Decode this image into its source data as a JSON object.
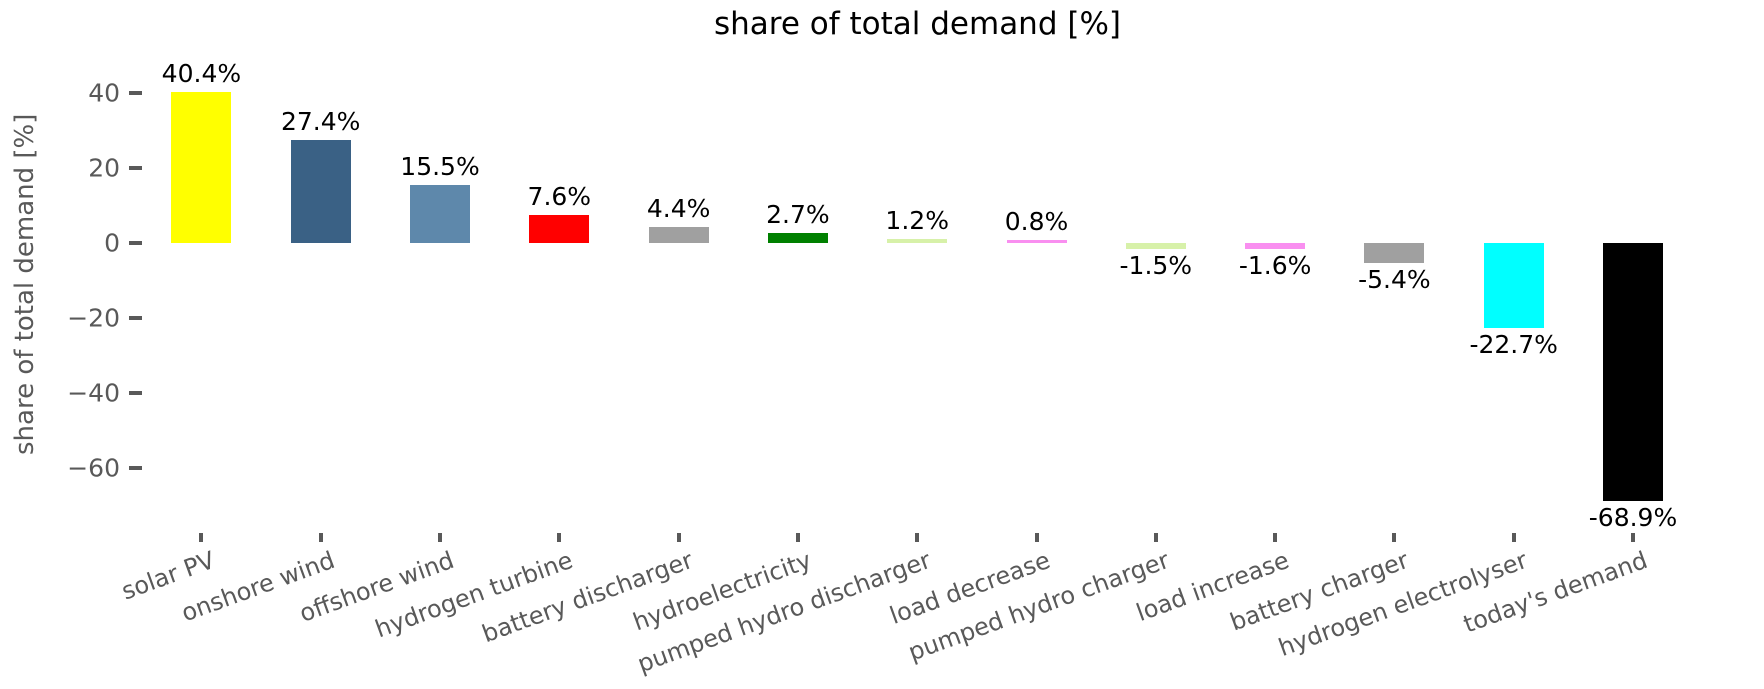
{
  "chart_data": {
    "type": "bar",
    "title": "share of total demand [%]",
    "xlabel": "",
    "ylabel": "share of total demand [%]",
    "ylim": [
      -76.5,
      51.5
    ],
    "grid": false,
    "legend": "none",
    "categories": [
      "solar PV",
      "onshore wind",
      "offshore wind",
      "hydrogen turbine",
      "battery discharger",
      "hydroelectricity",
      "pumped hydro discharger",
      "load decrease",
      "pumped hydro charger",
      "load increase",
      "battery charger",
      "hydrogen electrolyser",
      "today's demand"
    ],
    "values": [
      40.4,
      27.4,
      15.5,
      7.6,
      4.4,
      2.7,
      1.2,
      0.8,
      -1.5,
      -1.6,
      -5.4,
      -22.7,
      -68.9
    ],
    "value_labels": [
      "40.4%",
      "27.4%",
      "15.5%",
      "7.6%",
      "4.4%",
      "2.7%",
      "1.2%",
      "0.8%",
      "-1.5%",
      "-1.6%",
      "-5.4%",
      "-22.7%",
      "-68.9%"
    ],
    "bar_colors": [
      "#ffff00",
      "#3a6185",
      "#5e88ab",
      "#ff0000",
      "#a0a0a0",
      "#008000",
      "#d7f1a9",
      "#f98ff0",
      "#d7f1a9",
      "#f98ff0",
      "#a0a0a0",
      "#00ffff",
      "#000000"
    ],
    "y_ticks": [
      {
        "value": 40,
        "label": "40"
      },
      {
        "value": 20,
        "label": "20"
      },
      {
        "value": 0,
        "label": "0"
      },
      {
        "value": -20,
        "label": "−20"
      },
      {
        "value": -40,
        "label": "−40"
      },
      {
        "value": -60,
        "label": "−60"
      }
    ],
    "axis_color": "#595959",
    "title_color": "#000000",
    "annotation_color": "#000000"
  }
}
